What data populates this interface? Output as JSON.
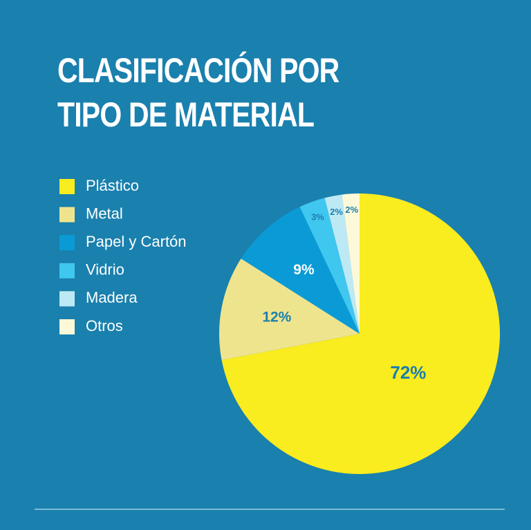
{
  "chart_data": {
    "type": "pie",
    "title": "CLASIFICACIÓN POR TIPO DE MATERIAL",
    "categories": [
      "Plástico",
      "Metal",
      "Papel y Cartón",
      "Vidrio",
      "Madera",
      "Otros"
    ],
    "values": [
      72,
      12,
      9,
      3,
      2,
      2
    ],
    "value_labels": [
      "72%",
      "12%",
      "9%",
      "3%",
      "2%",
      "2%"
    ],
    "colors": [
      "#f9ec1f",
      "#efe48e",
      "#0a9bd6",
      "#3fc7ef",
      "#bde9f5",
      "#fdf9d8"
    ]
  }
}
